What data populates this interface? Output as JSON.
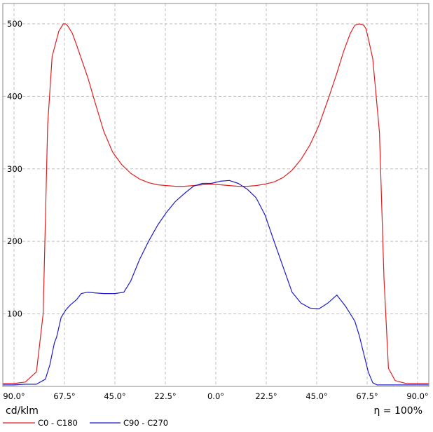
{
  "chart_data": {
    "type": "line",
    "xlabel": "",
    "ylabel": "",
    "unit_label": "cd/klm",
    "efficiency_label": "η = 100%",
    "x_tick_labels": [
      "90.0°",
      "67.5°",
      "45.0°",
      "22.5°",
      "0.0°",
      "22.5°",
      "45.0°",
      "67.5°",
      "90.0°"
    ],
    "x_ticks": [
      -90,
      -67.5,
      -45,
      -22.5,
      0,
      22.5,
      45,
      67.5,
      90
    ],
    "xlim": [
      -95,
      95
    ],
    "y_ticks": [
      100,
      200,
      300,
      400,
      500
    ],
    "y_tick_labels": [
      "100",
      "200",
      "300",
      "400",
      "500"
    ],
    "ylim": [
      0,
      528
    ],
    "grid": true,
    "legend_position": "bottom-left",
    "colors": {
      "c0": "#e02020",
      "c90": "#1c1cc8",
      "grid": "#bfbfbf"
    },
    "series": [
      {
        "name": "C0 - C180",
        "color": "#e02020",
        "x": [
          -95,
          -90,
          -85,
          -80,
          -77,
          -75,
          -73,
          -70,
          -68,
          -67,
          -66,
          -64,
          -62,
          -60,
          -57,
          -54,
          -50,
          -46,
          -42,
          -38,
          -34,
          -30,
          -26,
          -22,
          -18,
          -14,
          -10,
          -6,
          -2,
          2,
          6,
          10,
          14,
          18,
          22,
          26,
          30,
          34,
          38,
          42,
          46,
          50,
          54,
          57,
          60,
          62,
          64,
          66,
          67,
          68,
          70,
          73,
          75,
          77,
          80,
          85,
          90,
          95
        ],
        "y": [
          4,
          4,
          6,
          20,
          100,
          360,
          455,
          490,
          500,
          500,
          497,
          487,
          470,
          452,
          425,
          393,
          352,
          323,
          306,
          294,
          286,
          281,
          278,
          277,
          276,
          276,
          277,
          278,
          279,
          278,
          277,
          276,
          276,
          277,
          279,
          282,
          288,
          298,
          313,
          333,
          360,
          395,
          432,
          462,
          487,
          498,
          500,
          498,
          493,
          480,
          452,
          350,
          150,
          25,
          8,
          4,
          4,
          4
        ]
      },
      {
        "name": "C90 - C270",
        "color": "#1c1cc8",
        "x": [
          -95,
          -90,
          -85,
          -80,
          -76,
          -74,
          -72,
          -71,
          -69,
          -67,
          -65,
          -62,
          -60,
          -57,
          -54,
          -50,
          -45,
          -41,
          -38,
          -34,
          -30,
          -26,
          -22,
          -18,
          -14,
          -10,
          -6,
          -2,
          2,
          6,
          10,
          14,
          18,
          22,
          26,
          30,
          34,
          38,
          42,
          46,
          50,
          54,
          58,
          62,
          64,
          66,
          68,
          70,
          72,
          75,
          80,
          85,
          90,
          95
        ],
        "y": [
          2,
          2,
          3,
          3,
          10,
          30,
          60,
          68,
          95,
          105,
          112,
          120,
          128,
          130,
          129,
          128,
          128,
          130,
          145,
          175,
          200,
          222,
          240,
          255,
          266,
          276,
          280,
          280,
          283,
          284,
          280,
          272,
          260,
          236,
          200,
          165,
          130,
          115,
          108,
          107,
          115,
          126,
          110,
          90,
          70,
          45,
          20,
          5,
          2,
          2,
          2,
          2,
          2,
          2
        ]
      }
    ]
  }
}
